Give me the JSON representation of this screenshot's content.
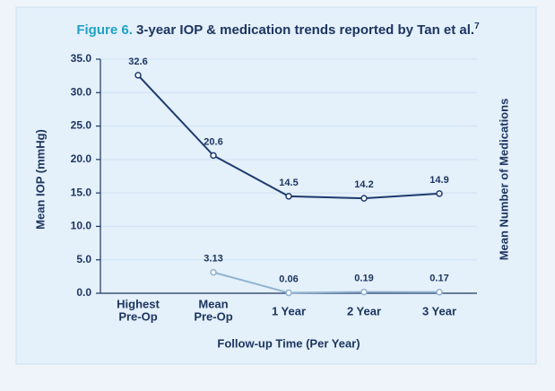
{
  "chart_data": {
    "type": "line",
    "title_prefix": "Figure 6.",
    "title": "3-year IOP & medication trends reported by Tan et al.",
    "title_superscript": "7",
    "xlabel": "Follow-up Time (Per Year)",
    "ylabel": "Mean IOP (mmHg)",
    "y2label": "Mean Number of Medications",
    "categories": [
      [
        "Highest",
        "Pre-Op"
      ],
      [
        "Mean",
        "Pre-Op"
      ],
      [
        "1 Year"
      ],
      [
        "2 Year"
      ],
      [
        "3 Year"
      ]
    ],
    "ylim": [
      0,
      35
    ],
    "yticks": [
      {
        "value": 0,
        "label": "0.0"
      },
      {
        "value": 5,
        "label": "5.0"
      },
      {
        "value": 10,
        "label": "10.0"
      },
      {
        "value": 15,
        "label": "15.0"
      },
      {
        "value": 20,
        "label": "20.0"
      },
      {
        "value": 25,
        "label": "25.0"
      },
      {
        "value": 30,
        "label": "30.0"
      },
      {
        "value": 35,
        "label": "35.0"
      }
    ],
    "grid": true,
    "series": [
      {
        "name": "Mean IOP",
        "color": "#1d3a6e",
        "values": [
          32.6,
          20.6,
          14.5,
          14.2,
          14.9
        ]
      },
      {
        "name": "Mean Number of Medications",
        "color": "#8fb2d0",
        "values": [
          null,
          3.13,
          0.06,
          0.19,
          0.17
        ]
      }
    ]
  }
}
